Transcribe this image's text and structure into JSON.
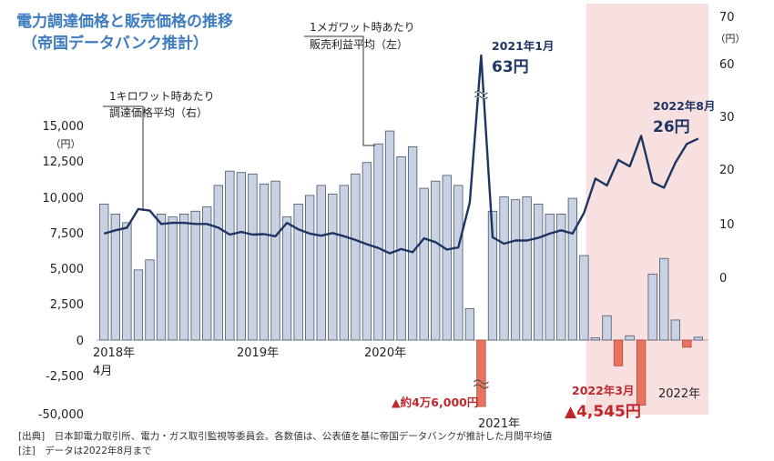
{
  "title": "電力調達価格と販売価格の推移",
  "subtitle": "（帝国データバンク推計）",
  "footer": {
    "source": "[出典]　日本卸電力取引所、電力・ガス取引監視等委員会。各数値は、公表値を基に帝国データバンクが推計した月間平均値",
    "note": "[注]　データは2022年8月まで"
  },
  "colors": {
    "bar": "#c9d2e3",
    "bar_stroke": "#4a5568",
    "neg_bar": "#e8735f",
    "line": "#1e3563",
    "shade": "#f4c6c6",
    "title": "#3e7cc0",
    "callout_red": "#c0272d",
    "callout_blue": "#1e3563"
  },
  "chart_data": {
    "type": "bar+line",
    "period": {
      "start": "2018-04",
      "end": "2022-08"
    },
    "y_left": {
      "unit": "（円）",
      "ylim": [
        -50000,
        15000
      ],
      "ticks": [
        "15,000",
        "12,500",
        "10,000",
        "7,500",
        "5,000",
        "2,500",
        "0",
        "-2,500",
        "-50,000"
      ]
    },
    "y_right": {
      "unit": "（円）",
      "ticks": [
        "70",
        "60",
        "30",
        "20",
        "10",
        "0"
      ]
    },
    "x_labels": [
      "2018年",
      "4月",
      "2019年",
      "2020年",
      "2021年",
      "2022年"
    ],
    "series": [
      {
        "label": "1メガワット時あたり販売利益平均（左）",
        "type": "bar",
        "values": [
          9500,
          8800,
          8200,
          4900,
          5600,
          8800,
          8600,
          8800,
          9000,
          9300,
          10800,
          11800,
          11700,
          11600,
          10900,
          11100,
          8600,
          9500,
          10100,
          10800,
          10200,
          10800,
          11600,
          12400,
          13700,
          14600,
          12800,
          13500,
          10600,
          11100,
          11500,
          10800,
          2200,
          -46000,
          9000,
          10000,
          9800,
          10000,
          9500,
          8800,
          8800,
          9900,
          5900,
          150,
          1700,
          -1800,
          300,
          -4545,
          4600,
          5700,
          1400,
          -500,
          200
        ]
      },
      {
        "label": "1キロワット時あたり調達価格平均（右）",
        "type": "line",
        "values": [
          8.2,
          8.8,
          9.3,
          12.8,
          12.5,
          10,
          10.2,
          10.2,
          10,
          10,
          9.3,
          8,
          8.5,
          8,
          8.1,
          7.7,
          10.2,
          9,
          8.2,
          7.8,
          8.3,
          7.7,
          7,
          6.2,
          5.5,
          4.5,
          5.3,
          4.7,
          7.3,
          6.6,
          5.2,
          5.6,
          14,
          63,
          7.5,
          6.3,
          6.9,
          6.9,
          7.4,
          8.2,
          8.8,
          8.2,
          12.1,
          18.5,
          17.2,
          22,
          20.8,
          26.5,
          17.8,
          16.8,
          21.5,
          25,
          26
        ]
      }
    ],
    "labels": {
      "line_series": [
        "1キロワット時あたり",
        "調達価格平均（右）"
      ],
      "bar_series": [
        "1メガワット時あたり",
        "販売利益平均（左）"
      ]
    },
    "annotations": [
      {
        "label": "2021年1月",
        "value": "63円"
      },
      {
        "label": "2022年8月",
        "value": "26円"
      },
      {
        "label": "2022年3月",
        "value": "▲4,545円"
      },
      {
        "label": "",
        "value": "▲約4万6,000円"
      }
    ],
    "shaded_range": [
      "2021-11",
      "2022-08"
    ]
  }
}
